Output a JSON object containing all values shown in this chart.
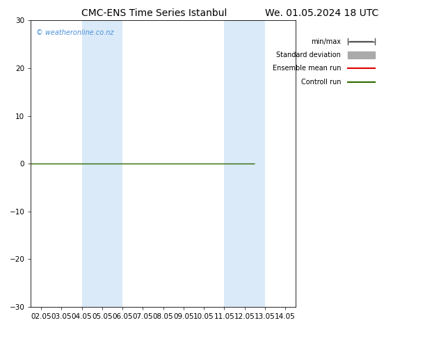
{
  "title_left": "CMC-ENS Time Series Istanbul",
  "title_right": "We. 01.05.2024 18 UTC",
  "ylim": [
    -30,
    30
  ],
  "yticks": [
    -30,
    -20,
    -10,
    0,
    10,
    20,
    30
  ],
  "xtick_labels": [
    "02.05",
    "03.05",
    "04.05",
    "05.05",
    "06.05",
    "07.05",
    "08.05",
    "09.05",
    "10.05",
    "11.05",
    "12.05",
    "13.05",
    "14.05"
  ],
  "xtick_values": [
    0,
    1,
    2,
    3,
    4,
    5,
    6,
    7,
    8,
    9,
    10,
    11,
    12
  ],
  "xlim": [
    -0.5,
    12.5
  ],
  "blue_bands": [
    [
      1.85,
      3.15
    ],
    [
      2.85,
      4.15
    ],
    [
      8.85,
      10.15
    ],
    [
      9.85,
      11.15
    ]
  ],
  "blue_band_color": "#daeaf8",
  "flat_line_y": 0,
  "flat_line_color": "#2d6a00",
  "flat_line_x_start": -0.5,
  "flat_line_x_end": 10.5,
  "legend_entries": [
    "min/max",
    "Standard deviation",
    "Ensemble mean run",
    "Controll run"
  ],
  "legend_colors": [
    "#555555",
    "#aaaaaa",
    "#dd0000",
    "#2d6a00"
  ],
  "watermark": "© weatheronline.co.nz",
  "watermark_color": "#4a90d9",
  "background_color": "#ffffff",
  "plot_background": "#ffffff",
  "title_fontsize": 10,
  "tick_fontsize": 7.5,
  "legend_fontsize": 7
}
